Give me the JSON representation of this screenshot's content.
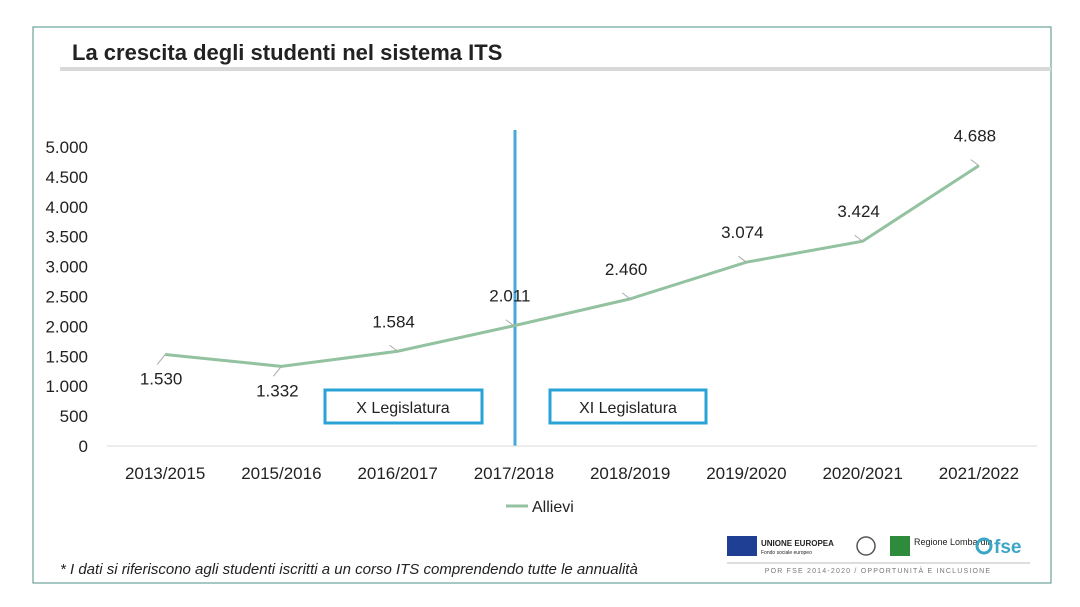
{
  "title": "La crescita degli studenti nel sistema ITS",
  "footnote": "* I dati si riferiscono agli studenti iscritti a un corso ITS comprendendo tutte le annualità",
  "logos": {
    "eu": "UNIONE EUROPEA",
    "eu_sub": "Fondo sociale europeo",
    "region": "Regione Lombardia",
    "fse": "fse",
    "program": "POR FSE 2014-2020 / OPPORTUNITÀ E INCLUSIONE"
  },
  "chart_data": {
    "type": "line",
    "categories": [
      "2013/2015",
      "2015/2016",
      "2016/2017",
      "2017/2018",
      "2018/2019",
      "2019/2020",
      "2020/2021",
      "2021/2022"
    ],
    "series": [
      {
        "name": "Allievi",
        "color": "#93c2a0",
        "values": [
          1530,
          1332,
          1584,
          2011,
          2460,
          3074,
          3424,
          4688
        ],
        "value_labels": [
          "1.530",
          "1.332",
          "1.584",
          "2.011",
          "2.460",
          "3.074",
          "3.424",
          "4.688"
        ]
      }
    ],
    "ylim": [
      0,
      5000
    ],
    "yticks": [
      0,
      500,
      {
        "value": 1000,
        "label": "1.000"
      },
      {
        "value": 1500,
        "label": "1.500"
      },
      {
        "value": 2000,
        "label": "2.000"
      },
      {
        "value": 2500,
        "label": "2.500"
      },
      {
        "value": 3000,
        "label": "3.000"
      },
      {
        "value": 3500,
        "label": "3.500"
      },
      {
        "value": 4000,
        "label": "4.000"
      },
      {
        "value": 4500,
        "label": "4.500"
      },
      {
        "value": 5000,
        "label": "5.000"
      }
    ],
    "annotations": [
      "X Legislatura",
      "XI Legislatura"
    ],
    "legend": "bottom"
  }
}
